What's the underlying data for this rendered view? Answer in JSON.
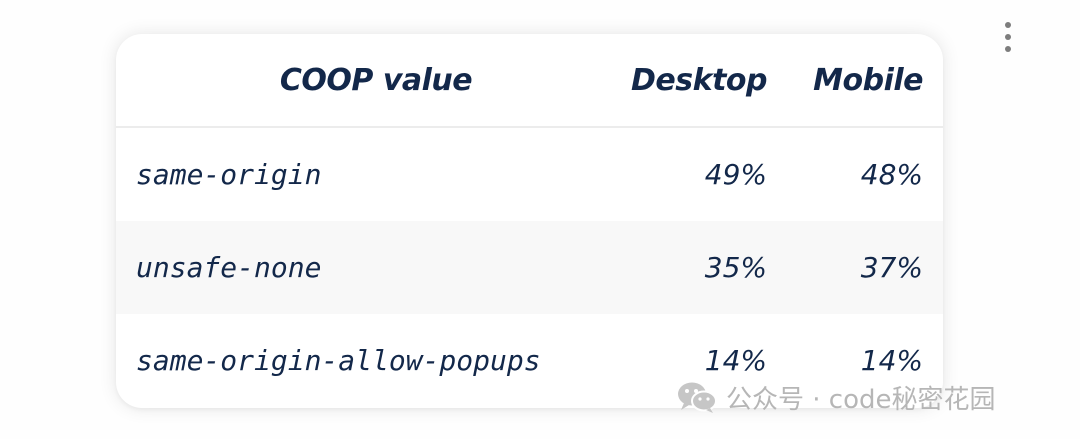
{
  "table": {
    "headers": [
      "COOP value",
      "Desktop",
      "Mobile"
    ],
    "rows": [
      {
        "value": "same-origin",
        "desktop": "49%",
        "mobile": "48%"
      },
      {
        "value": "unsafe-none",
        "desktop": "35%",
        "mobile": "37%"
      },
      {
        "value": "same-origin-allow-popups",
        "desktop": "14%",
        "mobile": "14%"
      }
    ]
  },
  "menu": {
    "icon": "more-vertical-icon"
  },
  "watermark": {
    "icon": "wechat-icon",
    "text": "公众号 · code秘密花园"
  },
  "colors": {
    "text": "#13284a",
    "row_alt": "#f8f8f8",
    "watermark": "#b3b3b3"
  }
}
